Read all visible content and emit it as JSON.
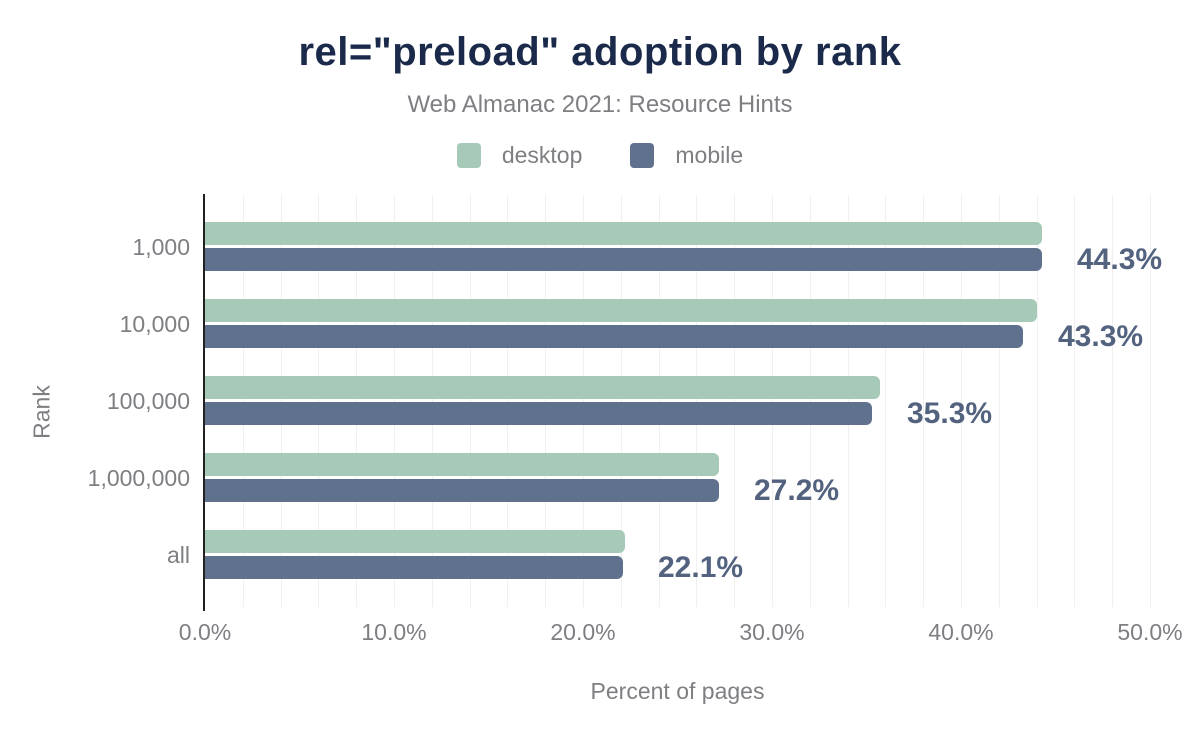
{
  "chart_data": {
    "type": "bar",
    "orientation": "horizontal",
    "title": "rel=\"preload\" adoption by rank",
    "subtitle": "Web Almanac 2021: Resource Hints",
    "categories": [
      "1,000",
      "10,000",
      "100,000",
      "1,000,000",
      "all"
    ],
    "series": [
      {
        "name": "desktop",
        "color": "#a6c9b8",
        "values": [
          44.3,
          44.0,
          35.7,
          27.2,
          22.2
        ]
      },
      {
        "name": "mobile",
        "color": "#5f718d",
        "values": [
          44.3,
          43.3,
          35.3,
          27.2,
          22.1
        ]
      }
    ],
    "data_labels": [
      "44.3%",
      "43.3%",
      "35.3%",
      "27.2%",
      "22.1%"
    ],
    "data_label_series": "mobile",
    "xlabel": "Percent of pages",
    "ylabel": "Rank",
    "xlim": [
      0,
      50
    ],
    "xticks": [
      {
        "value": 0,
        "label": "0.0%"
      },
      {
        "value": 10,
        "label": "10.0%"
      },
      {
        "value": 20,
        "label": "20.0%"
      },
      {
        "value": 30,
        "label": "30.0%"
      },
      {
        "value": 40,
        "label": "40.0%"
      },
      {
        "value": 50,
        "label": "50.0%"
      }
    ],
    "grid": {
      "vertical_minor_step_pct": 2,
      "color": "#f0f0f0"
    },
    "colors": {
      "title": "#1b2a4a",
      "muted_text": "#7d7f83",
      "value_label": "#52627f",
      "axis_line": "#212121",
      "background": "#ffffff"
    }
  }
}
